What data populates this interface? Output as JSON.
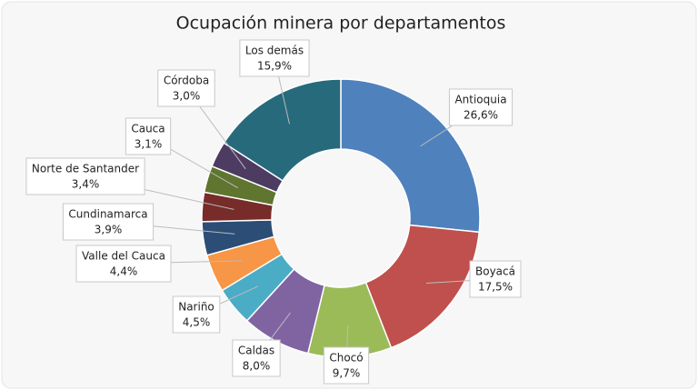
{
  "chart_data": {
    "type": "donut",
    "title": "Ocupación minera por departamentos",
    "categories": [
      "Antioquia",
      "Boyacá",
      "Chocó",
      "Caldas",
      "Nariño",
      "Valle del Cauca",
      "Cundinamarca",
      "Norte de Santander",
      "Cauca",
      "Córdoba",
      "Los demás"
    ],
    "values": [
      26.6,
      17.5,
      9.7,
      8.0,
      4.5,
      4.4,
      3.9,
      3.4,
      3.1,
      3.0,
      15.9
    ],
    "value_labels": [
      "26,6%",
      "17,5%",
      "9,7%",
      "8,0%",
      "4,5%",
      "4,4%",
      "3,9%",
      "3,4%",
      "3,1%",
      "3,0%",
      "15,9%"
    ],
    "colors": [
      "#4f81bd",
      "#c0504d",
      "#9bbb59",
      "#8064a2",
      "#4bacc6",
      "#f79646",
      "#2c4d75",
      "#772c2a",
      "#5f7530",
      "#4d3b62",
      "#276a7c"
    ]
  }
}
